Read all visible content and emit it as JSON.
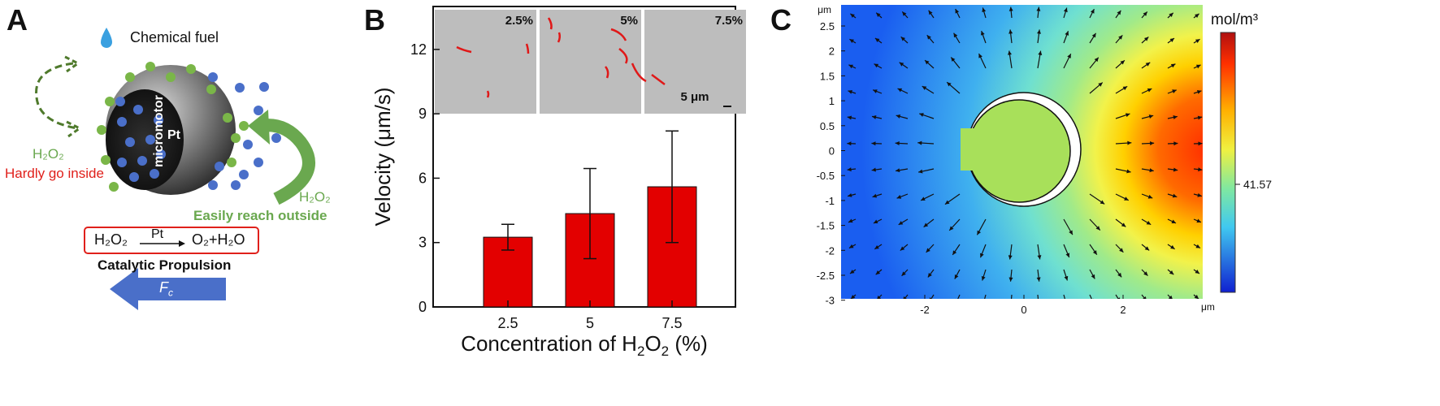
{
  "panels": {
    "a": {
      "letter": "A",
      "fuel_label": "Chemical fuel",
      "h2o2_left": "H₂O₂",
      "hardly_label": "Hardly go inside",
      "h2o2_right": "H₂O₂",
      "easily_label": "Easily reach outside",
      "motor_label_line1": "Pt",
      "motor_label_line2": "micromotor",
      "reaction_reactant": "H₂O₂",
      "reaction_catalyst": "Pt",
      "reaction_products": "O₂+H₂O",
      "propulsion_label": "Catalytic Propulsion",
      "force_label": "F",
      "force_sub": "c",
      "colors": {
        "green": "#6aa84f",
        "red": "#e0201b",
        "blue_dot": "#4a6fc9",
        "green_dot": "#7ab648",
        "arrow_blue": "#4a6fc9"
      }
    },
    "b": {
      "letter": "B",
      "inset_labels": [
        "2.5%",
        "5%",
        "7.5%"
      ],
      "scale_bar_label": "5 μm"
    },
    "c": {
      "letter": "C",
      "unit_label": "mol/m³",
      "colorbar_value": "41.57",
      "x_unit": "μm",
      "y_unit": "μm",
      "x_ticks": [
        "-2",
        "0",
        "2"
      ],
      "y_ticks": [
        "2.5",
        "2",
        "1.5",
        "1",
        "0.5",
        "0",
        "-0.5",
        "-1",
        "-1.5",
        "-2",
        "-2.5",
        "-3"
      ]
    }
  },
  "chart_data": {
    "type": "bar",
    "categories": [
      "2.5",
      "5",
      "7.5"
    ],
    "values": [
      3.25,
      4.35,
      5.6
    ],
    "errors": [
      0.6,
      2.1,
      2.6
    ],
    "xlabel_prefix": "Concentration of H",
    "xlabel_sub1": "2",
    "xlabel_mid": "O",
    "xlabel_sub2": "2",
    "xlabel_suffix": " (%)",
    "ylabel": "Velocity (μm/s)",
    "ylim": [
      0,
      14
    ],
    "yticks": [
      0,
      3,
      6,
      9,
      12
    ],
    "bar_color": "#e30000",
    "grid": false
  }
}
